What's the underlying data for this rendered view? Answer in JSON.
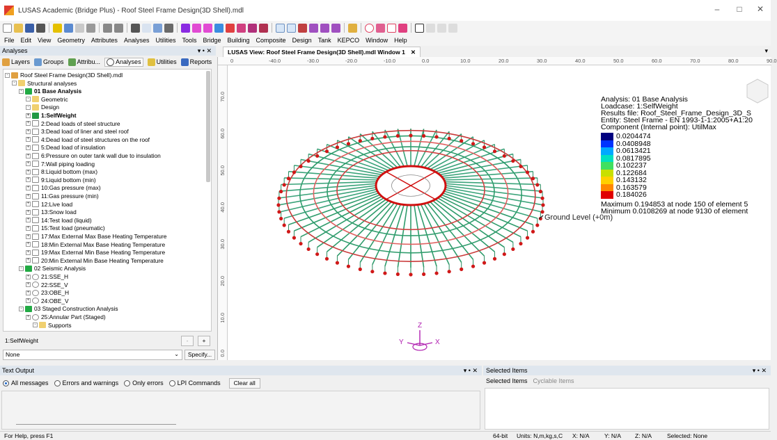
{
  "window": {
    "title": "LUSAS Academic (Bridge Plus) - Roof Steel Frame Design(3D Shell).mdl"
  },
  "menu": [
    "File",
    "Edit",
    "View",
    "Geometry",
    "Attributes",
    "Analyses",
    "Utilities",
    "Tools",
    "Bridge",
    "Building",
    "Composite",
    "Design",
    "Tank",
    "KEPCO",
    "Window",
    "Help"
  ],
  "left_panel": {
    "header": "Analyses",
    "tabs": [
      "Layers",
      "Groups",
      "Attribu...",
      "Analyses",
      "Utilities",
      "Reports"
    ],
    "tree": [
      {
        "label": "Roof Steel Frame Design(3D Shell).mdl",
        "level": 0,
        "icon": "model",
        "bold": false
      },
      {
        "label": "Structural analyses",
        "level": 1,
        "icon": "folder",
        "bold": false
      },
      {
        "label": "01 Base Analysis",
        "level": 2,
        "icon": "analysis",
        "bold": true
      },
      {
        "label": "Geometric",
        "level": 3,
        "icon": "folder",
        "bold": false
      },
      {
        "label": "Design",
        "level": 3,
        "icon": "folder",
        "bold": false
      },
      {
        "label": "1:SelfWeight",
        "level": 3,
        "icon": "active",
        "bold": true
      },
      {
        "label": "2:Dead loads of steel structure",
        "level": 3,
        "icon": "load",
        "bold": false
      },
      {
        "label": "3:Dead load of liner and steel roof",
        "level": 3,
        "icon": "load",
        "bold": false
      },
      {
        "label": "4:Dead load of steel structures on the roof",
        "level": 3,
        "icon": "load",
        "bold": false
      },
      {
        "label": "5:Dead load of insulation",
        "level": 3,
        "icon": "load",
        "bold": false
      },
      {
        "label": "6:Pressure on outer tank wall due to insulation",
        "level": 3,
        "icon": "load",
        "bold": false
      },
      {
        "label": "7:Wall piping loading",
        "level": 3,
        "icon": "load",
        "bold": false
      },
      {
        "label": "8:Liquid bottom (max)",
        "level": 3,
        "icon": "load",
        "bold": false
      },
      {
        "label": "9:Liquid bottom (min)",
        "level": 3,
        "icon": "load",
        "bold": false
      },
      {
        "label": "10:Gas pressure (max)",
        "level": 3,
        "icon": "load",
        "bold": false
      },
      {
        "label": "11:Gas pressure (min)",
        "level": 3,
        "icon": "load",
        "bold": false
      },
      {
        "label": "12:Live load",
        "level": 3,
        "icon": "load",
        "bold": false
      },
      {
        "label": "13:Snow load",
        "level": 3,
        "icon": "load",
        "bold": false
      },
      {
        "label": "14:Test load (liquid)",
        "level": 3,
        "icon": "load",
        "bold": false
      },
      {
        "label": "15:Test load (pneumatic)",
        "level": 3,
        "icon": "load",
        "bold": false
      },
      {
        "label": "17:Max External Max Base Heating Temperature",
        "level": 3,
        "icon": "load",
        "bold": false
      },
      {
        "label": "18:Min External Max Base Heating Temperature",
        "level": 3,
        "icon": "load",
        "bold": false
      },
      {
        "label": "19:Max External Min Base Heating Temperature",
        "level": 3,
        "icon": "load",
        "bold": false
      },
      {
        "label": "20:Min External Min Base Heating Temperature",
        "level": 3,
        "icon": "load",
        "bold": false
      },
      {
        "label": "02 Seismic Analysis",
        "level": 2,
        "icon": "analysis",
        "bold": false
      },
      {
        "label": "21:SSE_H",
        "level": 3,
        "icon": "seismic",
        "bold": false
      },
      {
        "label": "22:SSE_V",
        "level": 3,
        "icon": "seismic",
        "bold": false
      },
      {
        "label": "23:OBE_H",
        "level": 3,
        "icon": "seismic",
        "bold": false
      },
      {
        "label": "24:OBE_V",
        "level": 3,
        "icon": "seismic",
        "bold": false
      },
      {
        "label": "03 Staged Construction Analysis",
        "level": 2,
        "icon": "analysis",
        "bold": false
      },
      {
        "label": "25:Annular Part (Staged)",
        "level": 3,
        "icon": "staged",
        "bold": false
      },
      {
        "label": "Supports",
        "level": 4,
        "icon": "folder",
        "bold": false
      }
    ],
    "selector_value": "1:SelfWeight",
    "filter_value": "None",
    "specify_label": "Specify...",
    "minus_label": "-",
    "plus_label": "+"
  },
  "view": {
    "tab_title": "LUSAS View: Roof Steel Frame Design(3D Shell).mdl Window 1",
    "ruler_top": [
      "0",
      "-40.0",
      "-30.0",
      "-20.0",
      "-10.0",
      "0.0",
      "10.0",
      "20.0",
      "30.0",
      "40.0",
      "50.0",
      "60.0",
      "70.0",
      "80.0",
      "90.0"
    ],
    "ruler_left": [
      "70.0",
      "60.0",
      "50.0",
      "40.0",
      "30.0",
      "20.0",
      "10.0",
      "0.0"
    ],
    "annotation": "Ground Level (+0m)",
    "axes": {
      "x": "X",
      "y": "Y",
      "z": "Z"
    },
    "legend": {
      "analysis": "Analysis: 01 Base Analysis",
      "loadcase": "Loadcase: 1:SelfWeight",
      "results_file": "Results file: Roof_Steel_Frame_Design_3D_S",
      "entity": "Entity: Steel Frame - EN 1993-1-1:2005+A1:20",
      "component": "Component (Internal point): UtilMax",
      "levels": [
        {
          "value": "0.0204474",
          "color": "#000080"
        },
        {
          "value": "0.0408948",
          "color": "#0033ff"
        },
        {
          "value": "0.0613421",
          "color": "#00a8ff"
        },
        {
          "value": "0.0817895",
          "color": "#00e0c0"
        },
        {
          "value": "0.102237",
          "color": "#40e060"
        },
        {
          "value": "0.122684",
          "color": "#c8e000"
        },
        {
          "value": "0.143132",
          "color": "#ffd000"
        },
        {
          "value": "0.163579",
          "color": "#ff8800"
        },
        {
          "value": "0.184026",
          "color": "#e00000"
        }
      ],
      "maximum": "Maximum 0.194853 at node 150 of element 5",
      "minimum": "Minimum 0.0108269 at node 9130 of element"
    }
  },
  "output": {
    "header": "Text Output",
    "options": [
      "All messages",
      "Errors and warnings",
      "Only errors",
      "LPI Commands"
    ],
    "selected_option": "All messages",
    "clear_label": "Clear all"
  },
  "selected_items": {
    "header": "Selected Items",
    "tabs": [
      "Selected Items",
      "Cyclable Items"
    ]
  },
  "status": {
    "help": "For Help, press F1",
    "bits": "64-bit",
    "units": "Units: N,m,kg,s,C",
    "x": "X: N/A",
    "y": "Y: N/A",
    "z": "Z: N/A",
    "selected": "Selected: None"
  }
}
